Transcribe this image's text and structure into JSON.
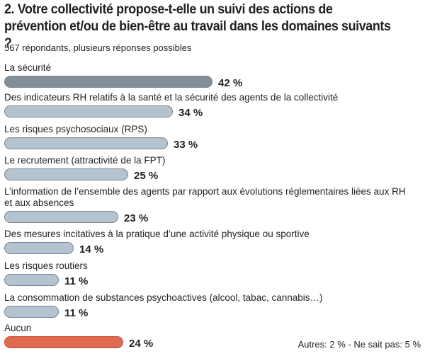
{
  "title": "2. Votre collectivité propose-t-elle un suivi des actions de prévention et/ou de bien-être au travail dans les domaines suivants ?",
  "subtitle": "567 répondants, plusieurs réponses possibles",
  "note": "Autres: 2 % - Ne sait pas: 5 %",
  "chart_data": {
    "type": "bar",
    "orientation": "horizontal",
    "unit": "%",
    "title": "2. Votre collectivité propose-t-elle un suivi des actions de prévention et/ou de bien-être au travail dans les domaines suivants ?",
    "categories": [
      "La sécurité",
      "Des indicateurs RH relatifs à la santé et la sécurité des agents de la collectivité",
      "Les risques psychosociaux (RPS)",
      "Le recrutement (attractivité de la FPT)",
      "L’information de l’ensemble des agents par rapport aux évolutions réglementaires liées aux RH et aux absences",
      "Des mesures incitatives à la pratique d’une activité physique ou sportive",
      "Les risques routiers",
      "La consommation de substances psychoactives (alcool, tabac, cannabis…)",
      "Aucun"
    ],
    "values": [
      42,
      34,
      33,
      25,
      23,
      14,
      11,
      11,
      24
    ],
    "value_labels": [
      "42 %",
      "34 %",
      "33 %",
      "25 %",
      "23 %",
      "14 %",
      "11 %",
      "11 %",
      "24 %"
    ],
    "colors": [
      "#838e99",
      "#b4c3d0",
      "#b4c3d0",
      "#b4c3d0",
      "#b4c3d0",
      "#b4c3d0",
      "#b4c3d0",
      "#b4c3d0",
      "#e06a4f"
    ],
    "bar_edge_color": "#7a8792",
    "grid": false,
    "legend": "none"
  }
}
